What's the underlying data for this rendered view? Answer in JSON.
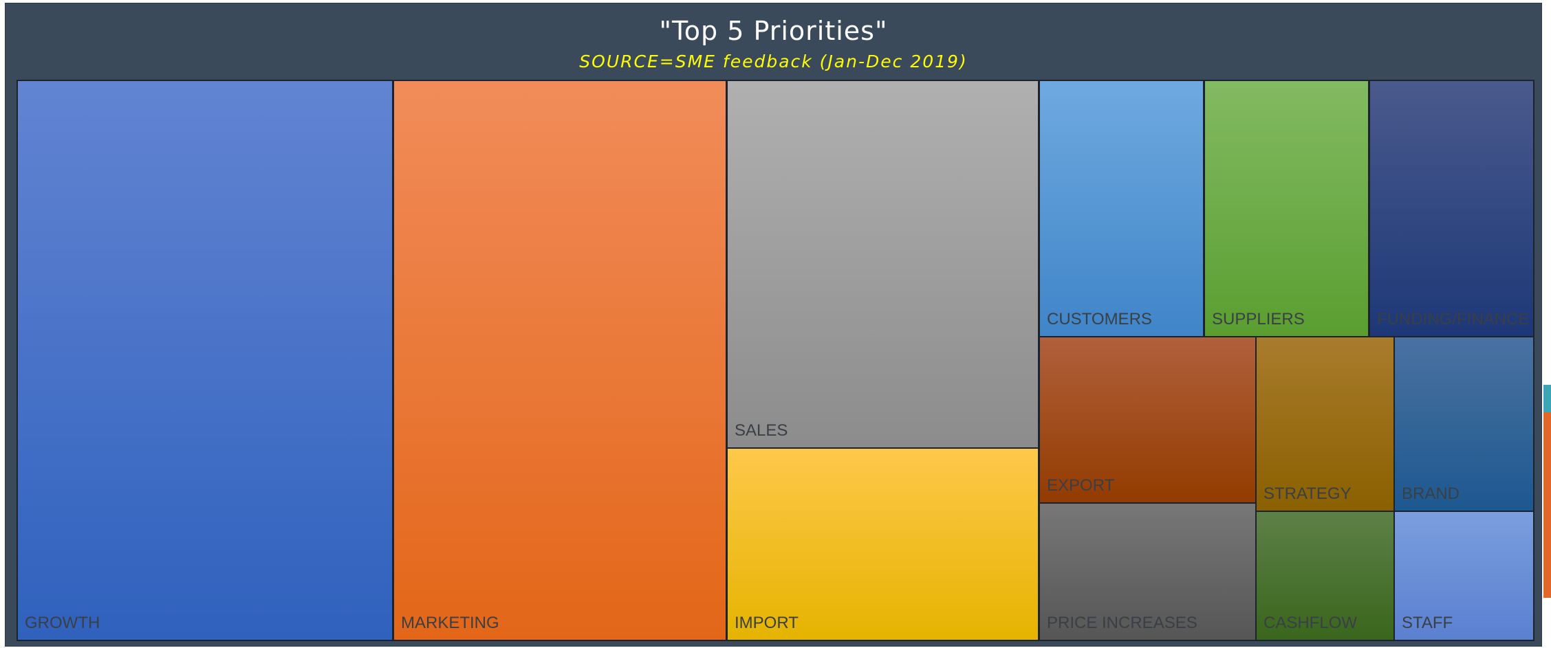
{
  "chart_data": {
    "type": "treemap",
    "title": "\"Top 5 Priorities\"",
    "subtitle": "SOURCE=SME feedback (Jan-Dec 2019)",
    "items": [
      {
        "name": "GROWTH",
        "value": 30.0,
        "color_top": "#6284d2",
        "color_bottom": "#2f61bd"
      },
      {
        "name": "MARKETING",
        "value": 26.5,
        "color_top": "#f18c5a",
        "color_bottom": "#e36618"
      },
      {
        "name": "SALES",
        "value": 16.2,
        "color_top": "#b0b0b0",
        "color_bottom": "#8c8c8c"
      },
      {
        "name": "IMPORT",
        "value": 8.6,
        "color_top": "#ffc84a",
        "color_bottom": "#e4b400"
      },
      {
        "name": "CUSTOMERS",
        "value": 3.4,
        "color_top": "#6fa9e0",
        "color_bottom": "#3f85c8"
      },
      {
        "name": "SUPPLIERS",
        "value": 3.4,
        "color_top": "#83ba62",
        "color_bottom": "#5a9e30"
      },
      {
        "name": "FUNDING/FINANCE",
        "value": 3.1,
        "color_top": "#4a5a8c",
        "color_bottom": "#1d3878"
      },
      {
        "name": "EXPORT",
        "value": 2.9,
        "color_top": "#b0603c",
        "color_bottom": "#933b00"
      },
      {
        "name": "PRICE INCREASES",
        "value": 2.4,
        "color_top": "#777777",
        "color_bottom": "#565656"
      },
      {
        "name": "STRATEGY",
        "value": 1.9,
        "color_top": "#a87c2c",
        "color_bottom": "#8a6000"
      },
      {
        "name": "BRAND",
        "value": 1.9,
        "color_top": "#4a72a0",
        "color_bottom": "#1d5890"
      },
      {
        "name": "CASHFLOW",
        "value": 1.4,
        "color_top": "#5d8048",
        "color_bottom": "#3a661c"
      },
      {
        "name": "STAFF",
        "value": 1.4,
        "color_top": "#7b9ede",
        "color_bottom": "#5a80d0"
      }
    ]
  }
}
